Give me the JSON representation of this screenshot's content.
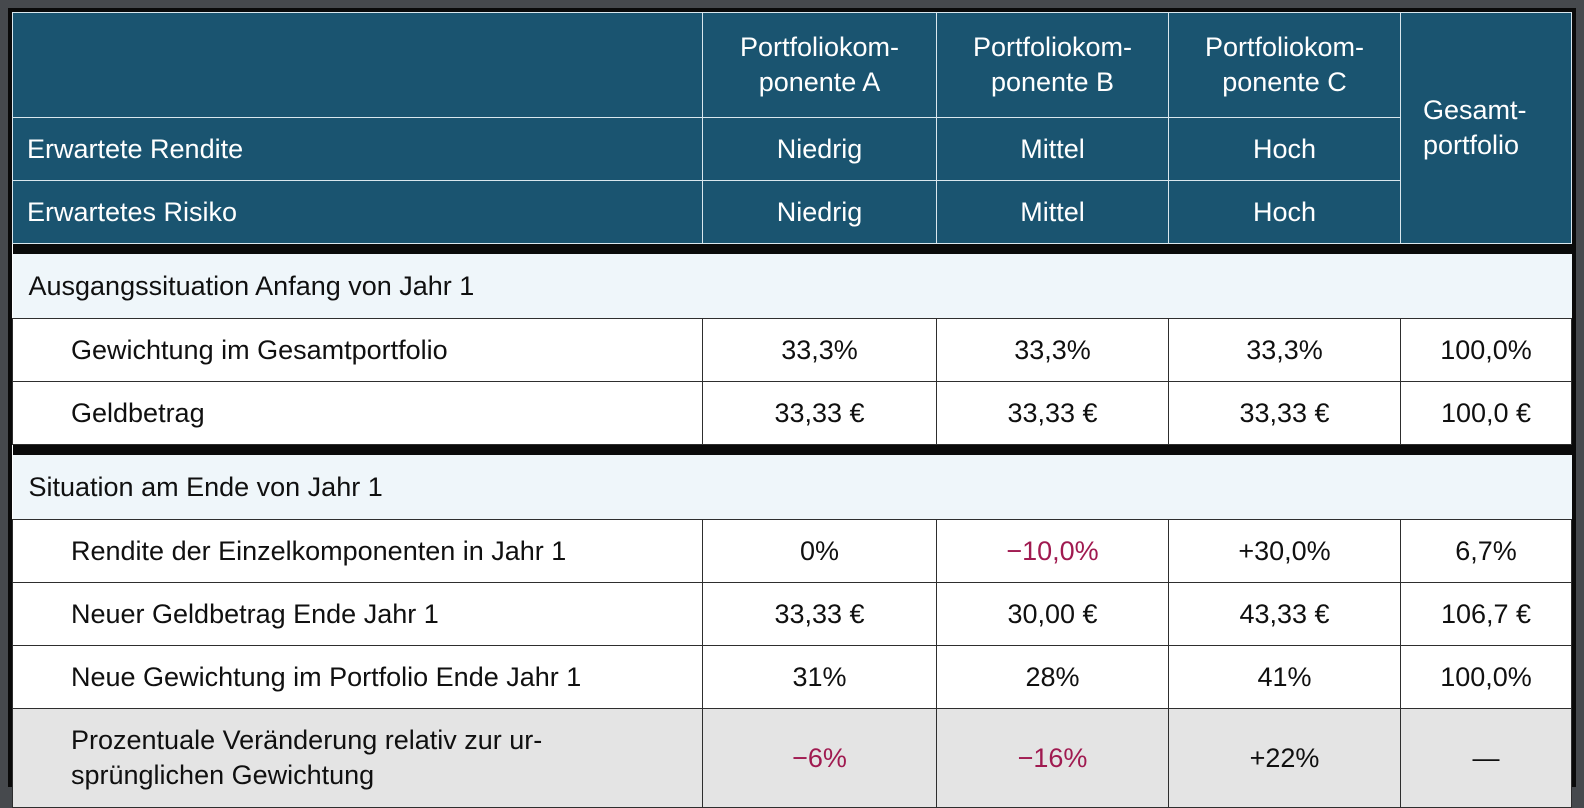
{
  "colors": {
    "header_bg": "#1a5470",
    "header_text": "#ffffff",
    "negative_value": "#a01a50",
    "section_row_bg": "#eff6fa",
    "highlight_row_bg": "#e4e4e4",
    "divider_band": "#0a0a0a"
  },
  "table": {
    "header": {
      "corner": "",
      "columns": [
        "Portfoliokom-\nponente A",
        "Portfoliokom-\nponente B",
        "Portfoliokom-\nponente C"
      ],
      "total_column": "Gesamt-\nportfolio",
      "attribute_rows": [
        {
          "label": "Erwartete Rendite",
          "values": [
            "Niedrig",
            "Mittel",
            "Hoch"
          ]
        },
        {
          "label": "Erwartetes Risiko",
          "values": [
            "Niedrig",
            "Mittel",
            "Hoch"
          ]
        }
      ]
    },
    "sections": [
      {
        "title": "Ausgangssituation Anfang von Jahr 1",
        "rows": [
          {
            "label": "Gewichtung im Gesamtportfolio",
            "values": [
              "33,3%",
              "33,3%",
              "33,3%",
              "100,0%"
            ]
          },
          {
            "label": "Geldbetrag",
            "values": [
              "33,33 €",
              "33,33 €",
              "33,33 €",
              "100,0 €"
            ]
          }
        ]
      },
      {
        "title": "Situation am Ende von Jahr 1",
        "rows": [
          {
            "label": "Rendite der Einzelkomponenten in Jahr 1",
            "values": [
              "0%",
              "−10,0%",
              "+30,0%",
              "6,7%"
            ]
          },
          {
            "label": "Neuer Geldbetrag Ende Jahr 1",
            "values": [
              "33,33 €",
              "30,00 €",
              "43,33 €",
              "106,7 €"
            ]
          },
          {
            "label": "Neue Gewichtung im Portfolio Ende Jahr 1",
            "values": [
              "31%",
              "28%",
              "41%",
              "100,0%"
            ]
          },
          {
            "label": "Prozentuale Veränderung relativ zur ur-\nsprünglichen Gewichtung",
            "values": [
              "−6%",
              "−16%",
              "+22%",
              "—"
            ]
          }
        ]
      }
    ]
  }
}
